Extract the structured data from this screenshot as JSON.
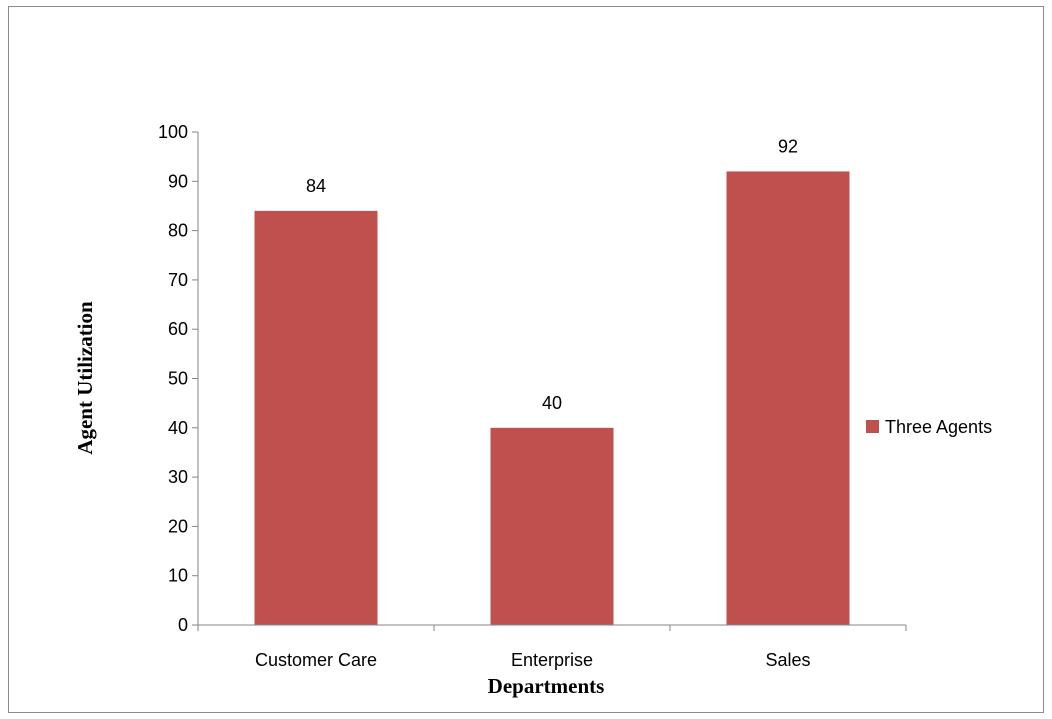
{
  "chart_data": {
    "type": "bar",
    "categories": [
      "Customer Care",
      "Enterprise",
      "Sales"
    ],
    "series": [
      {
        "name": "Three Agents",
        "values": [
          84,
          40,
          92
        ],
        "color": "#C0504D"
      }
    ],
    "data_labels": [
      "84",
      "40",
      "92"
    ],
    "y_ticks": [
      "0",
      "10",
      "20",
      "30",
      "40",
      "50",
      "60",
      "70",
      "80",
      "90",
      "100"
    ],
    "xlabel": "Departments",
    "ylabel": "Agent Utilization",
    "ylim": [
      0,
      100
    ],
    "grid": false,
    "legend": "right",
    "axis_color": "#868686"
  }
}
